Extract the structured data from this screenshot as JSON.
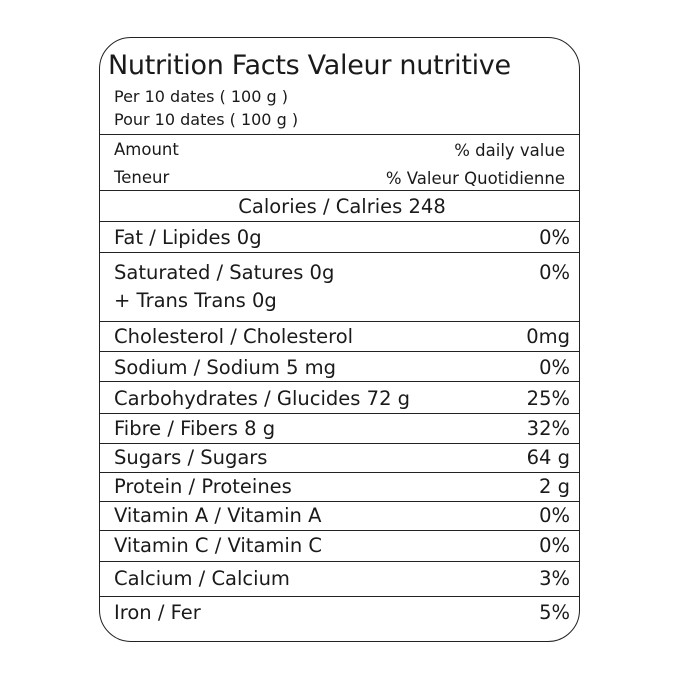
{
  "title": "Nutrition Facts Valeur nutritive",
  "serving_en": "Per 10 dates ( 100 g )",
  "serving_fr": "Pour 10 dates ( 100 g )",
  "header": {
    "amount_en": "Amount",
    "dv_en": "% daily value",
    "amount_fr": "Teneur",
    "dv_fr": "% Valeur Quotidienne"
  },
  "calories": "Calories / Calries 248",
  "rows": [
    {
      "label": "Fat / Lipides 0g",
      "value": "0%"
    },
    {
      "label": "Saturated / Satures 0g",
      "sub": "+ Trans Trans 0g",
      "value": "0%"
    },
    {
      "label": "Cholesterol / Cholesterol",
      "value": "0mg"
    },
    {
      "label": "Sodium / Sodium 5 mg",
      "value": "0%"
    },
    {
      "label": "Carbohydrates / Glucides 72 g",
      "value": "25%"
    },
    {
      "label": "Fibre / Fibers 8 g",
      "value": "32%"
    },
    {
      "label": "Sugars / Sugars",
      "value": "64 g"
    },
    {
      "label": "Protein / Proteines",
      "value": "2 g"
    },
    {
      "label": "Vitamin A / Vitamin A",
      "value": "0%"
    },
    {
      "label": "Vitamin C / Vitamin C",
      "value": "0%"
    },
    {
      "label": "Calcium / Calcium",
      "value": "3%"
    },
    {
      "label": "Iron / Fer",
      "value": "5%"
    }
  ]
}
